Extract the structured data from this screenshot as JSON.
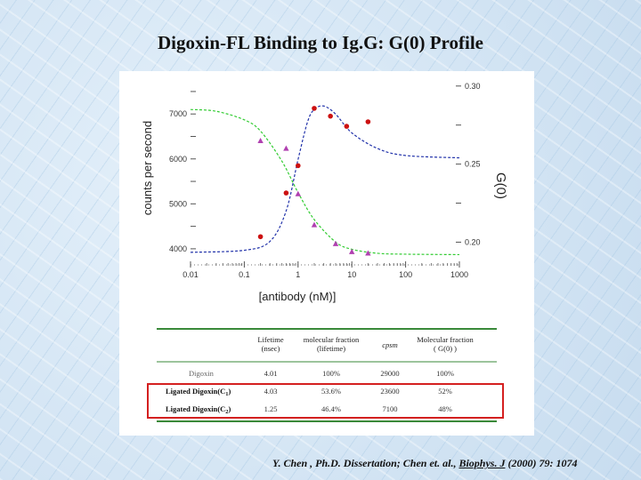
{
  "slide": {
    "title": "Digoxin-FL Binding to  Ig.G: G(0) Profile",
    "citation_prefix": "Y. Chen , Ph.D. Dissertation; Chen et. al.,  ",
    "citation_journal": "Biophys. J",
    "citation_suffix": "  (2000) 79: 1074"
  },
  "chart_data": {
    "type": "scatter",
    "xlabel": "[antibody (nM)]",
    "ylabel_left": "counts per second",
    "ylabel_right": "G(0)",
    "x_scale": "log",
    "xlim": [
      0.01,
      1000
    ],
    "x_ticks": [
      {
        "value": 0.01,
        "label": "0.01"
      },
      {
        "value": 0.1,
        "label": "0.1"
      },
      {
        "value": 1,
        "label": "1"
      },
      {
        "value": 10,
        "label": "10"
      },
      {
        "value": 100,
        "label": "100"
      },
      {
        "value": 1000,
        "label": "1000"
      }
    ],
    "ylim_left": [
      3800,
      7400
    ],
    "y_ticks_left": [
      {
        "value": 4000,
        "label": "4000"
      },
      {
        "value": 4500,
        "label": ""
      },
      {
        "value": 5000,
        "label": "5000"
      },
      {
        "value": 5500,
        "label": ""
      },
      {
        "value": 6000,
        "label": "6000"
      },
      {
        "value": 6500,
        "label": ""
      },
      {
        "value": 7000,
        "label": "7000"
      },
      {
        "value": 7500,
        "label": ""
      }
    ],
    "ylim_right": [
      0.19,
      0.305
    ],
    "y_ticks_right": [
      {
        "value": 0.2,
        "label": "0.20"
      },
      {
        "value": 0.225,
        "label": ""
      },
      {
        "value": 0.25,
        "label": "0.25"
      },
      {
        "value": 0.275,
        "label": ""
      },
      {
        "value": 0.3,
        "label": "0.30"
      }
    ],
    "series": [
      {
        "axis": "left",
        "marker": "triangle",
        "color": "#b040b0",
        "x": [
          0.2,
          0.6,
          1.0,
          2.0,
          5.0,
          10.0,
          20.0
        ],
        "y": [
          6400,
          6230,
          5220,
          4530,
          4110,
          3930,
          3900
        ]
      },
      {
        "axis": "right",
        "marker": "circle",
        "color": "#cc1111",
        "x": [
          0.2,
          0.6,
          1.0,
          2.0,
          4.0,
          8.0,
          20.0
        ],
        "y": [
          0.2035,
          0.2315,
          0.249,
          0.2857,
          0.2807,
          0.2742,
          0.2771
        ]
      }
    ],
    "fit_curves": [
      {
        "axis": "left",
        "color": "#33cc33",
        "style": "dashed",
        "x": [
          0.01,
          0.03,
          0.1,
          0.2,
          0.5,
          1,
          2,
          5,
          10,
          30,
          100,
          1000
        ],
        "y": [
          7100,
          7060,
          6870,
          6620,
          5950,
          5250,
          4650,
          4150,
          3990,
          3900,
          3880,
          3870
        ]
      },
      {
        "axis": "right",
        "color": "#2233aa",
        "style": "dashed",
        "x": [
          0.01,
          0.1,
          0.3,
          0.6,
          1,
          1.5,
          2,
          3,
          5,
          10,
          30,
          100,
          1000
        ],
        "y": [
          0.1935,
          0.1948,
          0.2005,
          0.22,
          0.253,
          0.277,
          0.285,
          0.2872,
          0.282,
          0.27,
          0.26,
          0.2555,
          0.254
        ]
      }
    ]
  },
  "table": {
    "headers": [
      "",
      "Lifetime\n(nsec)",
      "molecular fraction\n(lifetime)",
      "cpsm",
      "Molecular fraction\n( G(0) )"
    ],
    "rows": [
      {
        "label": "Digoxin",
        "sub": "",
        "cells": [
          "4.01",
          "100%",
          "29000",
          "100%"
        ],
        "bold": false
      },
      {
        "label": "Ligated Digoxin(C",
        "sub": "1",
        "cells": [
          "4.03",
          "53.6%",
          "23600",
          "52%"
        ],
        "bold": true
      },
      {
        "label": "Ligated Digoxin(C",
        "sub": "2",
        "cells": [
          "1.25",
          "46.4%",
          "7100",
          "48%"
        ],
        "bold": true
      }
    ],
    "colors": {
      "rule": "#3a8a3a",
      "highlight": "#d42020"
    }
  }
}
